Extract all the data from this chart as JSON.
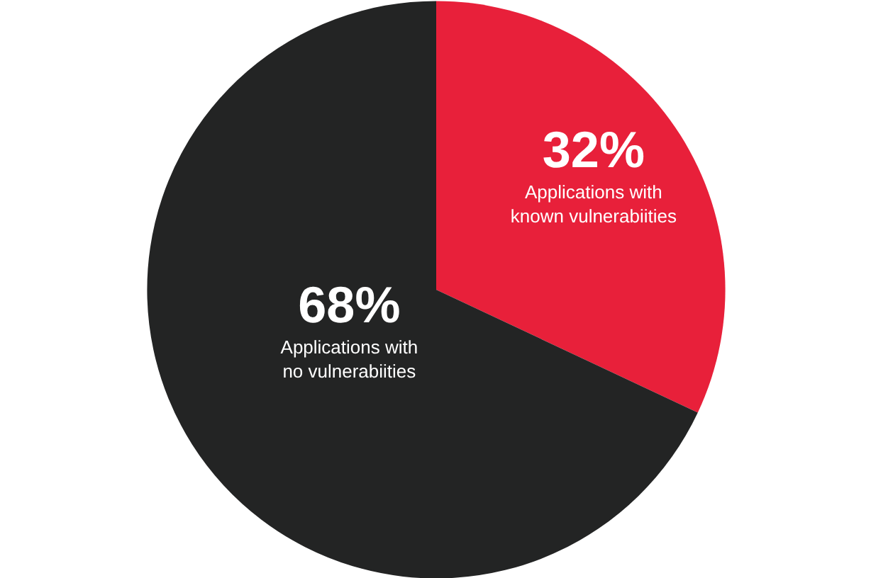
{
  "chart_data": {
    "type": "pie",
    "categories": [
      "Applications with\nknown vulnerabiities",
      "Applications with\nno vulnerabiities"
    ],
    "values": [
      32,
      68
    ],
    "value_labels": [
      "32%",
      "68%"
    ],
    "colors": [
      "#e8203a",
      "#232424"
    ]
  }
}
